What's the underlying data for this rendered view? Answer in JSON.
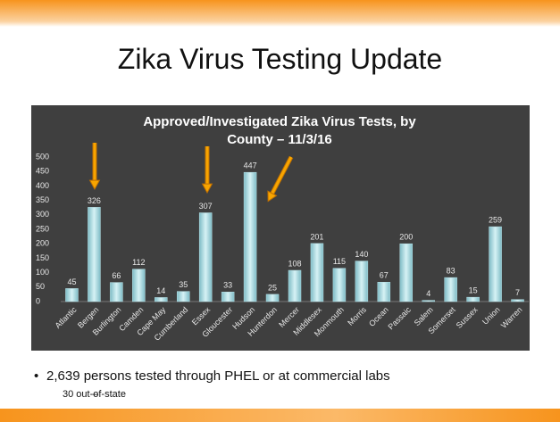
{
  "slide_title": "Zika Virus Testing Update",
  "chart_data": {
    "type": "bar",
    "title": "Approved/Investigated Zika Virus Tests, by County – 11/3/16",
    "categories": [
      "Atlantic",
      "Bergen",
      "Burlington",
      "Camden",
      "Cape May",
      "Cumberland",
      "Essex",
      "Gloucester",
      "Hudson",
      "Hunterdon",
      "Mercer",
      "Middlesex",
      "Monmouth",
      "Morris",
      "Ocean",
      "Passaic",
      "Salem",
      "Somerset",
      "Sussex",
      "Union",
      "Warren"
    ],
    "values": [
      45,
      326,
      66,
      112,
      14,
      35,
      307,
      33,
      447,
      25,
      108,
      201,
      115,
      140,
      67,
      200,
      4,
      83,
      15,
      259,
      7
    ],
    "color": "#b8e4ea",
    "ylim": [
      0,
      500
    ],
    "yticks": [
      0,
      50,
      100,
      150,
      200,
      250,
      300,
      350,
      400,
      450,
      500
    ],
    "grid": false
  },
  "bullets": [
    "2,639 persons tested through PHEL or at commercial labs",
    "30 out-of-state"
  ]
}
